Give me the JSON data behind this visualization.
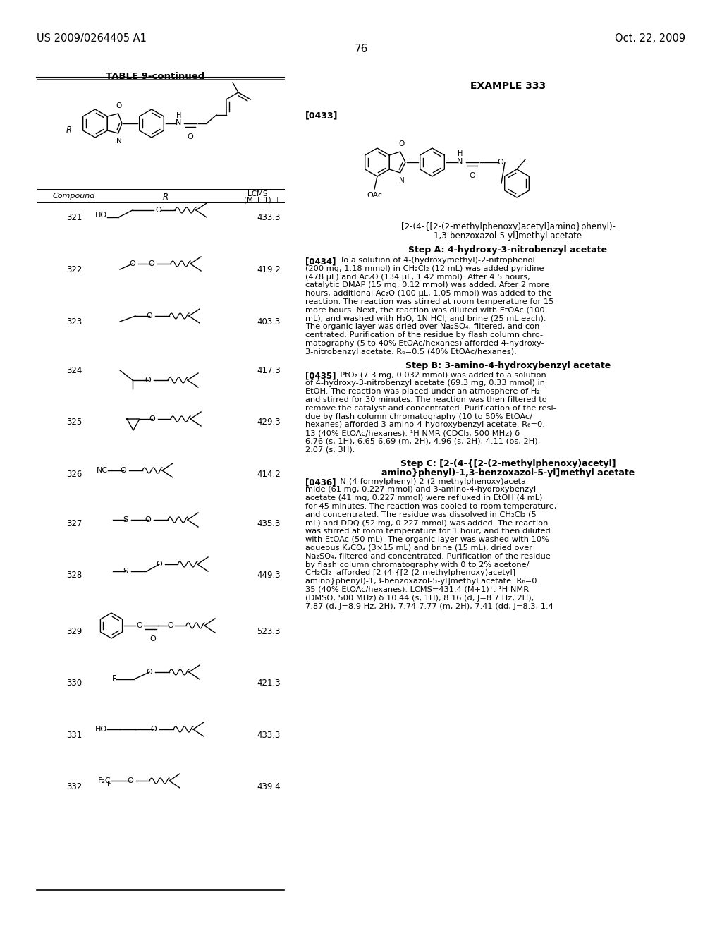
{
  "page_left": "US 2009/0264405 A1",
  "page_right": "Oct. 22, 2009",
  "page_number": "76",
  "table_title": "TABLE 9-continued",
  "compounds": [
    {
      "num": "321",
      "lcms": "433.3"
    },
    {
      "num": "322",
      "lcms": "419.2"
    },
    {
      "num": "323",
      "lcms": "403.3"
    },
    {
      "num": "324",
      "lcms": "417.3"
    },
    {
      "num": "325",
      "lcms": "429.3"
    },
    {
      "num": "326",
      "lcms": "414.2"
    },
    {
      "num": "327",
      "lcms": "435.3"
    },
    {
      "num": "328",
      "lcms": "449.3"
    },
    {
      "num": "329",
      "lcms": "523.3"
    },
    {
      "num": "330",
      "lcms": "421.3"
    },
    {
      "num": "331",
      "lcms": "433.3"
    },
    {
      "num": "332",
      "lcms": "439.4"
    }
  ],
  "example_title": "EXAMPLE 333",
  "bracket_ref": "[0433]",
  "compound_name_1": "[2-(4-{[2-(2-methylphenoxy)acetyl]amino}phenyl)-",
  "compound_name_2": "1,3-benzoxazol-5-yl]methyl acetate",
  "step_a_title": "Step A: 4-hydroxy-3-nitrobenzyl acetate",
  "step_b_title": "Step B: 3-amino-4-hydroxybenzyl acetate",
  "step_c_title_1": "Step C: [2-(4-{[2-(2-methylphenoxy)acetyl]",
  "step_c_title_2": "amino}phenyl)-1,3-benzoxazol-5-yl]methyl acetate",
  "background_color": "#ffffff"
}
